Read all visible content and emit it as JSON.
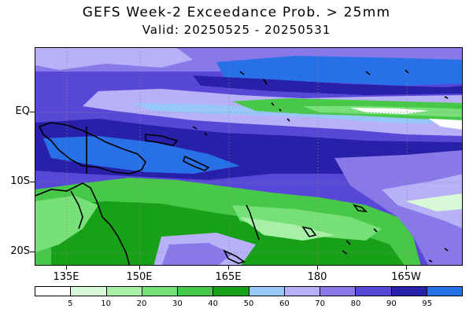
{
  "header": {
    "title": "GEFS Week-2 Exceedance Prob. > 25mm",
    "subtitle": "Valid: 20250525 - 20250531"
  },
  "map": {
    "lat_labels": [
      "EQ",
      "10S",
      "20S"
    ],
    "lon_labels": [
      "135E",
      "150E",
      "165E",
      "180",
      "165W"
    ],
    "grid_lines": "dotted",
    "coastline_color": "#000000"
  },
  "legend": {
    "levels": [
      "5",
      "10",
      "20",
      "30",
      "40",
      "50",
      "60",
      "70",
      "80",
      "90",
      "95"
    ],
    "colors": [
      "#ffffff",
      "#d8f8d8",
      "#a8f0a8",
      "#78e078",
      "#48c848",
      "#18a018",
      "#98c8f8",
      "#b8b0f8",
      "#8878e8",
      "#5848d8",
      "#2820a8",
      "#2870e8"
    ]
  }
}
